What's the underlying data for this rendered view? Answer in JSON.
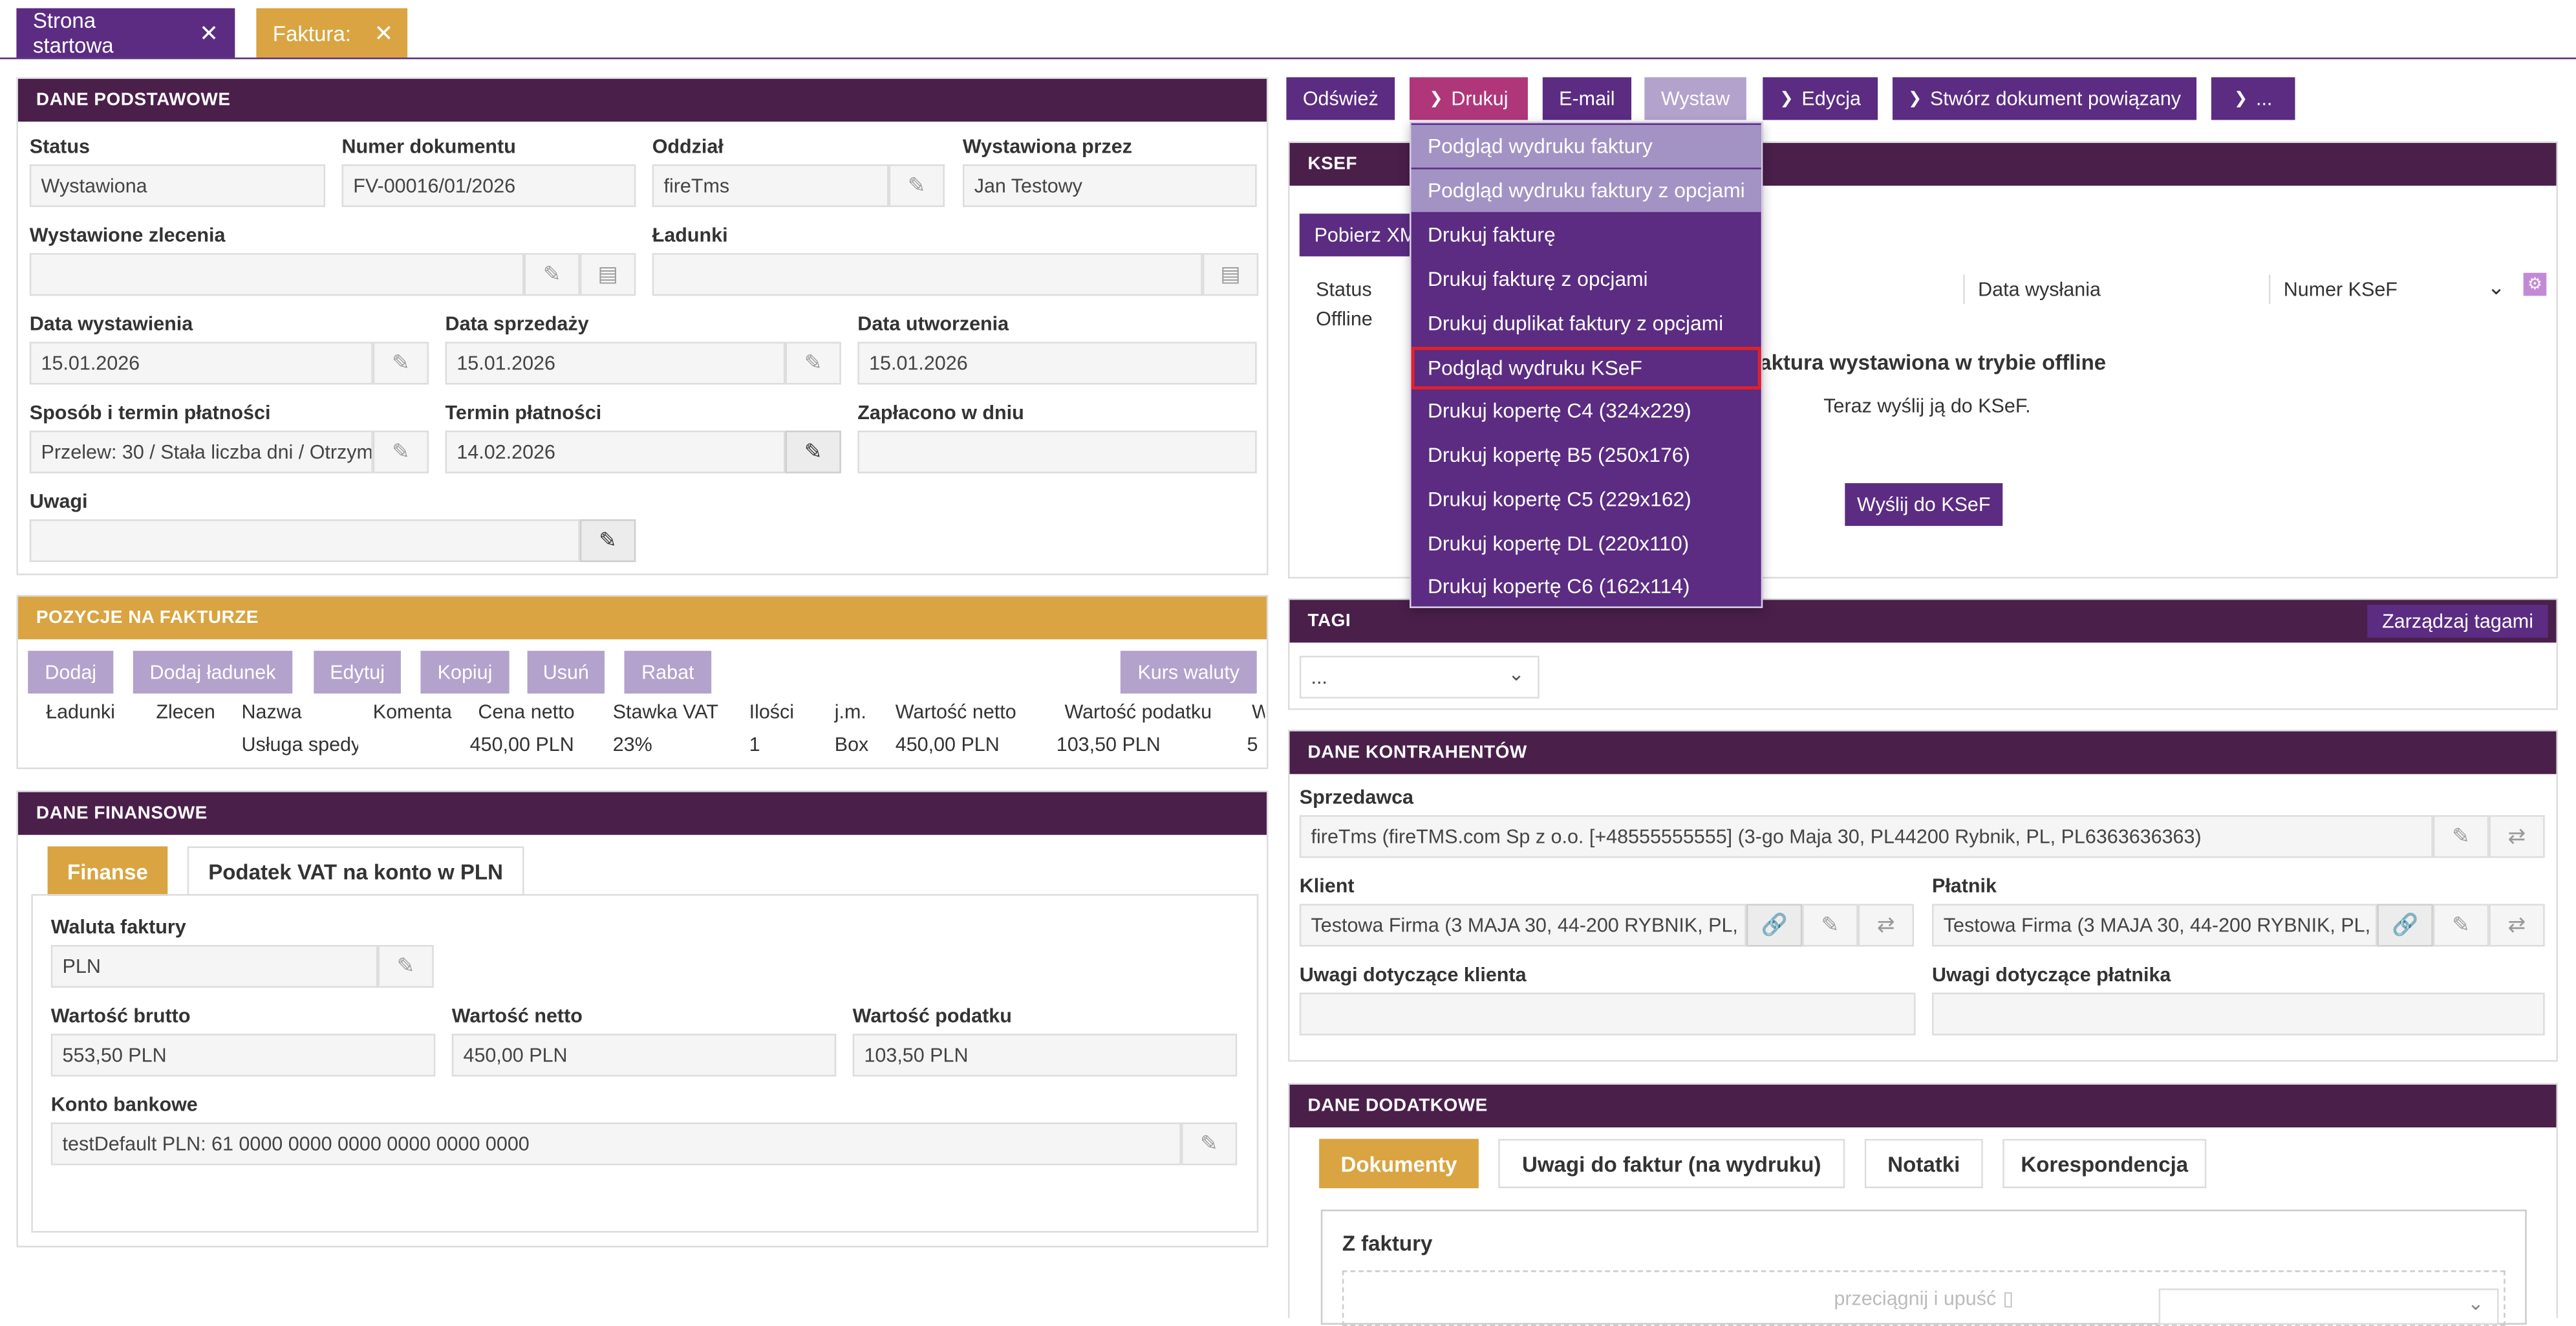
{
  "tabs": [
    {
      "label": "Strona startowa"
    },
    {
      "label": "Faktura:"
    }
  ],
  "basic": {
    "title": "DANE PODSTAWOWE",
    "status_label": "Status",
    "status_value": "Wystawiona",
    "docnum_label": "Numer dokumentu",
    "docnum_value": "FV-00016/01/2026",
    "branch_label": "Oddział",
    "branch_value": "fireTms",
    "issuedby_label": "Wystawiona przez",
    "issuedby_value": "Jan Testowy",
    "orders_label": "Wystawione zlecenia",
    "loads_label": "Ładunki",
    "issue_date_label": "Data wystawienia",
    "issue_date_value": "15.01.2026",
    "sale_date_label": "Data sprzedaży",
    "sale_date_value": "15.01.2026",
    "created_date_label": "Data utworzenia",
    "created_date_value": "15.01.2026",
    "payment_method_label": "Sposób i termin płatności",
    "payment_method_value": "Przelew: 30 / Stała liczba dni / Otrzym",
    "payment_due_label": "Termin płatności",
    "payment_due_value": "14.02.2026",
    "paid_on_label": "Zapłacono w dniu",
    "notes_label": "Uwagi"
  },
  "items": {
    "title": "POZYCJE NA FAKTURZE",
    "buttons": [
      "Dodaj",
      "Dodaj ładunek",
      "Edytuj",
      "Kopiuj",
      "Usuń",
      "Rabat"
    ],
    "fx_button": "Kurs waluty",
    "columns": [
      "Ładunki",
      "Zlecen",
      "Nazwa",
      "Komenta",
      "Cena netto",
      "Stawka VAT",
      "Ilości",
      "j.m.",
      "Wartość netto",
      "Wartość podatku",
      "W"
    ],
    "rows": [
      [
        "",
        "",
        "Usługa spedy",
        "",
        "450,00 PLN",
        "23%",
        "1",
        "Box",
        "450,00 PLN",
        "103,50 PLN",
        "5"
      ]
    ]
  },
  "finance": {
    "title": "DANE FINANSOWE",
    "tab1": "Finanse",
    "tab2": "Podatek VAT na konto w PLN",
    "currency_label": "Waluta faktury",
    "currency_value": "PLN",
    "gross_label": "Wartość brutto",
    "gross_value": "553,50 PLN",
    "net_label": "Wartość netto",
    "net_value": "450,00 PLN",
    "tax_label": "Wartość podatku",
    "tax_value": "103,50 PLN",
    "account_label": "Konto bankowe",
    "account_value": "testDefault PLN: 61 0000 0000 0000 0000 0000 0000"
  },
  "toolbar": {
    "refresh": "Odśwież",
    "print": "Drukuj",
    "email": "E-mail",
    "issue": "Wystaw",
    "edit": "Edycja",
    "related": "Stwórz dokument powiązany",
    "more": "..."
  },
  "print_menu": [
    "Podgląd wydruku faktury",
    "Podgląd wydruku faktury z opcjami",
    "Drukuj fakturę",
    "Drukuj fakturę z opcjami",
    "Drukuj duplikat faktury z opcjami",
    "Podgląd wydruku KSeF",
    "Drukuj kopertę C4 (324x229)",
    "Drukuj kopertę B5 (250x176)",
    "Drukuj kopertę C5 (229x162)",
    "Drukuj kopertę DL (220x110)",
    "Drukuj kopertę C6 (162x114)"
  ],
  "ksef": {
    "title": "KSEF",
    "download_btn": "Pobierz XM",
    "status_label": "Status",
    "status_value": "Offline",
    "sent_date_label": "Data wysłania",
    "ksef_num_label": "Numer KSeF",
    "offline_msg": "aktura wystawiona w trybie offline",
    "send_hint": "Teraz wyślij ją do KSeF.",
    "send_btn": "Wyślij do KSeF"
  },
  "tags": {
    "title": "TAGI",
    "manage_btn": "Zarządzaj tagami",
    "select_value": "..."
  },
  "contractors": {
    "title": "DANE KONTRAHENTÓW",
    "seller_label": "Sprzedawca",
    "seller_value": "fireTms (fireTMS.com Sp z o.o. [+48555555555] (3-go Maja 30, PL44200 Rybnik, PL, PL6363636363)",
    "client_label": "Klient",
    "client_value": "Testowa Firma (3 MAJA 30, 44-200 RYBNIK, PL, P",
    "payer_label": "Płatnik",
    "payer_value": "Testowa Firma (3 MAJA 30, 44-200 RYBNIK, PL, P",
    "client_notes_label": "Uwagi dotyczące klienta",
    "payer_notes_label": "Uwagi dotyczące płatnika"
  },
  "additional": {
    "title": "DANE DODATKOWE",
    "tabs": [
      "Dokumenty",
      "Uwagi do faktur (na wydruku)",
      "Notatki",
      "Korespondencja"
    ],
    "section_title": "Z faktury",
    "drop_hint": "przeciągnij i upuść"
  },
  "colors": {
    "primary": "#5b2c82",
    "header_dark": "#4a1f4a",
    "accent_gold": "#d9a441",
    "highlight": "#e0202a"
  }
}
